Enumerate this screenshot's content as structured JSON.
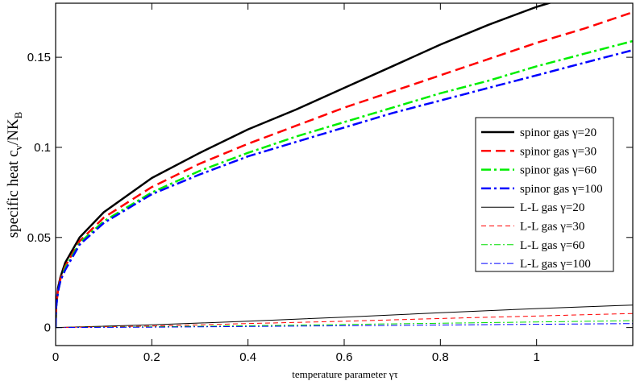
{
  "chart_data": {
    "type": "line",
    "xlabel": "temperature parameter γτ",
    "ylabel": "specific heat c_v/NK_B",
    "ylabel_main": "specific heat c",
    "ylabel_sub1": "v",
    "ylabel_mid": "/NK",
    "ylabel_sub2": "B",
    "xlim": [
      0,
      1.2
    ],
    "ylim": [
      -0.01,
      0.18
    ],
    "x_ticks": [
      0,
      0.2,
      0.4,
      0.6,
      0.8,
      1
    ],
    "x_tick_labels": [
      "0",
      "0.2",
      "0.4",
      "0.6",
      "0.8",
      "1"
    ],
    "y_ticks": [
      0,
      0.05,
      0.1,
      0.15
    ],
    "y_tick_labels": [
      "0",
      "0.05",
      "0.1",
      "0.15"
    ],
    "grid": false,
    "legend_position": "right",
    "series": [
      {
        "name": "spinor gas γ=20",
        "color": "#000000",
        "width": 2.5,
        "dash": "",
        "x": [
          0,
          0.001,
          0.005,
          0.01,
          0.02,
          0.05,
          0.1,
          0.2,
          0.3,
          0.4,
          0.5,
          0.6,
          0.7,
          0.8,
          0.9,
          1.0,
          1.05
        ],
        "y": [
          0,
          0.012,
          0.022,
          0.028,
          0.036,
          0.05,
          0.064,
          0.083,
          0.097,
          0.11,
          0.121,
          0.133,
          0.145,
          0.157,
          0.168,
          0.178,
          0.182
        ]
      },
      {
        "name": "spinor gas γ=30",
        "color": "#ff0000",
        "width": 2.5,
        "dash": "12,6",
        "x": [
          0,
          0.001,
          0.005,
          0.01,
          0.02,
          0.05,
          0.1,
          0.2,
          0.3,
          0.4,
          0.5,
          0.6,
          0.7,
          0.8,
          0.9,
          1.0,
          1.1,
          1.2
        ],
        "y": [
          0,
          0.011,
          0.021,
          0.027,
          0.034,
          0.048,
          0.061,
          0.078,
          0.091,
          0.102,
          0.112,
          0.122,
          0.131,
          0.14,
          0.149,
          0.158,
          0.166,
          0.175
        ]
      },
      {
        "name": "spinor gas γ=60",
        "color": "#00ee00",
        "width": 2.5,
        "dash": "12,4,3,4",
        "x": [
          0,
          0.001,
          0.005,
          0.01,
          0.02,
          0.05,
          0.1,
          0.2,
          0.3,
          0.4,
          0.5,
          0.6,
          0.7,
          0.8,
          0.9,
          1.0,
          1.1,
          1.2
        ],
        "y": [
          0,
          0.011,
          0.02,
          0.026,
          0.033,
          0.047,
          0.059,
          0.075,
          0.087,
          0.097,
          0.106,
          0.114,
          0.122,
          0.13,
          0.137,
          0.145,
          0.152,
          0.159
        ]
      },
      {
        "name": "spinor gas γ=100",
        "color": "#0000ff",
        "width": 2.5,
        "dash": "12,4,3,4",
        "x": [
          0,
          0.001,
          0.005,
          0.01,
          0.02,
          0.05,
          0.1,
          0.2,
          0.3,
          0.4,
          0.5,
          0.6,
          0.7,
          0.8,
          0.9,
          1.0,
          1.1,
          1.2
        ],
        "y": [
          0,
          0.011,
          0.02,
          0.026,
          0.032,
          0.046,
          0.058,
          0.074,
          0.085,
          0.095,
          0.103,
          0.111,
          0.119,
          0.126,
          0.133,
          0.14,
          0.147,
          0.154
        ]
      },
      {
        "name": "L-L gas γ=20",
        "color": "#000000",
        "width": 1,
        "dash": "",
        "x": [
          0,
          0.2,
          0.4,
          0.6,
          0.8,
          1.0,
          1.2
        ],
        "y": [
          0,
          0.0015,
          0.0035,
          0.0058,
          0.0082,
          0.0105,
          0.0125
        ]
      },
      {
        "name": "L-L gas γ=30",
        "color": "#ff0000",
        "width": 1,
        "dash": "6,4",
        "x": [
          0,
          0.2,
          0.4,
          0.6,
          0.8,
          1.0,
          1.2
        ],
        "y": [
          0,
          0.0008,
          0.0022,
          0.0035,
          0.005,
          0.0064,
          0.0078
        ]
      },
      {
        "name": "L-L gas γ=60",
        "color": "#00dd00",
        "width": 1,
        "dash": "8,3,2,3",
        "x": [
          0,
          0.2,
          0.4,
          0.6,
          0.8,
          1.0,
          1.2
        ],
        "y": [
          0,
          0.0004,
          0.001,
          0.0017,
          0.0024,
          0.0031,
          0.0038
        ]
      },
      {
        "name": "L-L gas γ=100",
        "color": "#0000ff",
        "width": 1,
        "dash": "8,3,2,3",
        "x": [
          0,
          0.2,
          0.4,
          0.6,
          0.8,
          1.0,
          1.2
        ],
        "y": [
          0,
          0.0002,
          0.0006,
          0.001,
          0.0014,
          0.0018,
          0.0022
        ]
      }
    ]
  }
}
